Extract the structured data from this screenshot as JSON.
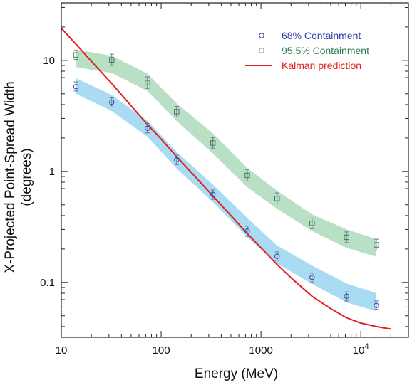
{
  "chart_data": {
    "type": "scatter",
    "title": "",
    "xlabel": "Energy (MeV)",
    "ylabel_line1": "X-Projected Point-Spread Width",
    "ylabel_line2": "(degrees)",
    "x_scale": "log",
    "y_scale": "log",
    "xlim": [
      10,
      30000
    ],
    "ylim": [
      0.032,
      33
    ],
    "x_ticks": [
      {
        "value": 10,
        "label": "10"
      },
      {
        "value": 100,
        "label": "100"
      },
      {
        "value": 1000,
        "label": "1000"
      },
      {
        "value": 10000,
        "label_base": "10",
        "label_exp": "4"
      }
    ],
    "y_ticks": [
      {
        "value": 0.1,
        "label": "0.1"
      },
      {
        "value": 1,
        "label": "1"
      },
      {
        "value": 10,
        "label": "10"
      }
    ],
    "grid": false,
    "legend_position": "top-right",
    "series": [
      {
        "name": "68% Containment",
        "marker": "circle",
        "color": "#2e3ea8",
        "points": [
          {
            "x": 14,
            "y": 5.8,
            "lo": 5.3,
            "hi": 6.4
          },
          {
            "x": 32,
            "y": 4.2,
            "lo": 3.8,
            "hi": 4.6
          },
          {
            "x": 73,
            "y": 2.45,
            "lo": 2.22,
            "hi": 2.7
          },
          {
            "x": 143,
            "y": 1.27,
            "lo": 1.15,
            "hi": 1.4
          },
          {
            "x": 330,
            "y": 0.62,
            "lo": 0.56,
            "hi": 0.68
          },
          {
            "x": 730,
            "y": 0.29,
            "lo": 0.26,
            "hi": 0.32
          },
          {
            "x": 1450,
            "y": 0.172,
            "lo": 0.158,
            "hi": 0.188
          },
          {
            "x": 3250,
            "y": 0.111,
            "lo": 0.101,
            "hi": 0.121
          },
          {
            "x": 7200,
            "y": 0.075,
            "lo": 0.068,
            "hi": 0.082
          },
          {
            "x": 14300,
            "y": 0.062,
            "lo": 0.057,
            "hi": 0.068
          }
        ],
        "band": [
          {
            "x": 14,
            "lo": 5.0,
            "hi": 6.9
          },
          {
            "x": 32,
            "lo": 3.5,
            "hi": 4.9
          },
          {
            "x": 73,
            "lo": 2.05,
            "hi": 2.85
          },
          {
            "x": 143,
            "lo": 1.06,
            "hi": 1.5
          },
          {
            "x": 330,
            "lo": 0.53,
            "hi": 0.76
          },
          {
            "x": 730,
            "lo": 0.255,
            "hi": 0.38
          },
          {
            "x": 1450,
            "lo": 0.148,
            "hi": 0.215
          },
          {
            "x": 3250,
            "lo": 0.097,
            "hi": 0.142
          },
          {
            "x": 7200,
            "lo": 0.066,
            "hi": 0.098
          },
          {
            "x": 14300,
            "lo": 0.055,
            "hi": 0.08
          }
        ]
      },
      {
        "name": "95.5% Containment",
        "marker": "square",
        "color": "#2f7d52",
        "points": [
          {
            "x": 14,
            "y": 11.2,
            "lo": 10.2,
            "hi": 12.3
          },
          {
            "x": 32,
            "y": 10.1,
            "lo": 9.0,
            "hi": 11.4
          },
          {
            "x": 73,
            "y": 6.3,
            "lo": 5.6,
            "hi": 7.1
          },
          {
            "x": 143,
            "y": 3.45,
            "lo": 3.1,
            "hi": 3.85
          },
          {
            "x": 330,
            "y": 1.8,
            "lo": 1.62,
            "hi": 2.02
          },
          {
            "x": 730,
            "y": 0.92,
            "lo": 0.82,
            "hi": 1.04
          },
          {
            "x": 1450,
            "y": 0.57,
            "lo": 0.51,
            "hi": 0.64
          },
          {
            "x": 3250,
            "y": 0.34,
            "lo": 0.305,
            "hi": 0.38
          },
          {
            "x": 7200,
            "y": 0.255,
            "lo": 0.228,
            "hi": 0.285
          },
          {
            "x": 14300,
            "y": 0.218,
            "lo": 0.195,
            "hi": 0.245
          }
        ],
        "band": [
          {
            "x": 14,
            "lo": 8.7,
            "hi": 12.5
          },
          {
            "x": 32,
            "lo": 7.7,
            "hi": 11.0
          },
          {
            "x": 73,
            "lo": 5.3,
            "hi": 7.6
          },
          {
            "x": 143,
            "lo": 2.85,
            "hi": 4.1
          },
          {
            "x": 330,
            "lo": 1.45,
            "hi": 2.2
          },
          {
            "x": 730,
            "lo": 0.72,
            "hi": 1.07
          },
          {
            "x": 1450,
            "lo": 0.46,
            "hi": 0.67
          },
          {
            "x": 3250,
            "lo": 0.29,
            "hi": 0.41
          },
          {
            "x": 7200,
            "lo": 0.205,
            "hi": 0.3
          },
          {
            "x": 14300,
            "lo": 0.17,
            "hi": 0.245
          }
        ]
      },
      {
        "name": "Kalman prediction",
        "marker": "line",
        "color": "#e02020",
        "points": [
          {
            "x": 10,
            "y": 19.5
          },
          {
            "x": 14,
            "y": 14.0
          },
          {
            "x": 20,
            "y": 9.8
          },
          {
            "x": 32,
            "y": 6.2
          },
          {
            "x": 50,
            "y": 3.9
          },
          {
            "x": 73,
            "y": 2.65
          },
          {
            "x": 100,
            "y": 1.95
          },
          {
            "x": 143,
            "y": 1.36
          },
          {
            "x": 200,
            "y": 0.98
          },
          {
            "x": 330,
            "y": 0.6
          },
          {
            "x": 500,
            "y": 0.4
          },
          {
            "x": 730,
            "y": 0.275
          },
          {
            "x": 1000,
            "y": 0.205
          },
          {
            "x": 1450,
            "y": 0.145
          },
          {
            "x": 2000,
            "y": 0.11
          },
          {
            "x": 3250,
            "y": 0.075
          },
          {
            "x": 5000,
            "y": 0.058
          },
          {
            "x": 7200,
            "y": 0.048
          },
          {
            "x": 10000,
            "y": 0.043
          },
          {
            "x": 14300,
            "y": 0.04
          },
          {
            "x": 20000,
            "y": 0.038
          }
        ]
      }
    ],
    "band_colors": {
      "68% Containment": "#a9dcf2",
      "95.5% Containment": "#b9e0c4"
    },
    "errorbar_color": "#7a6a90"
  }
}
